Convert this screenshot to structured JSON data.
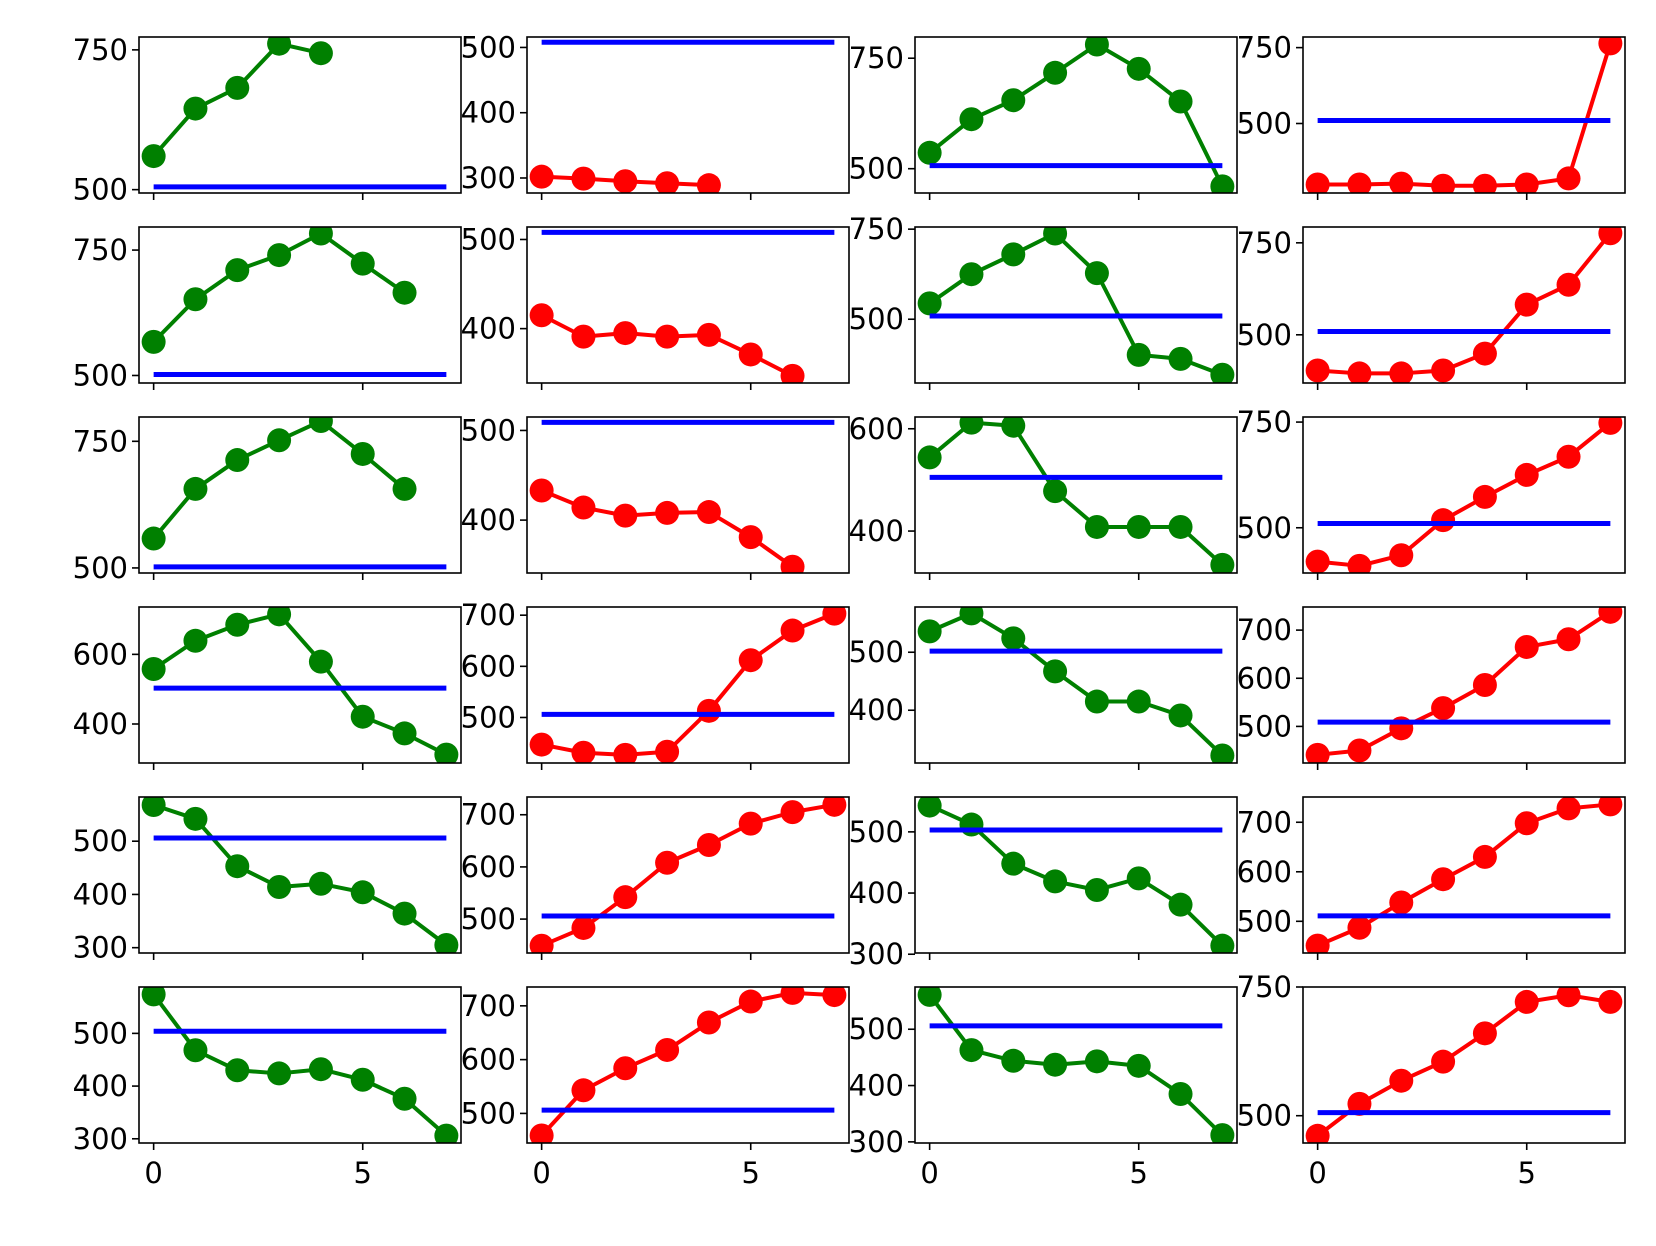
{
  "chart_data": [
    {
      "type": "line",
      "xlim": [
        -0.35,
        7.35
      ],
      "xticks": [
        0,
        5
      ],
      "ylim": [
        494,
        773
      ],
      "yticks": [
        500,
        750
      ],
      "series": [
        {
          "color": "#008000",
          "marker": "o",
          "x": [
            0,
            1,
            2,
            3,
            4
          ],
          "values": [
            560,
            645,
            682,
            761,
            744
          ]
        },
        {
          "color": "#0000ff",
          "x": [
            0,
            7
          ],
          "values": [
            505,
            505
          ]
        }
      ]
    },
    {
      "type": "line",
      "xlim": [
        -0.35,
        7.35
      ],
      "xticks": [
        0,
        5
      ],
      "ylim": [
        277,
        516
      ],
      "yticks": [
        300,
        400,
        500
      ],
      "series": [
        {
          "color": "#ff0000",
          "marker": "o",
          "x": [
            0,
            1,
            2,
            3,
            4
          ],
          "values": [
            302,
            299,
            295,
            292,
            289
          ]
        },
        {
          "color": "#0000ff",
          "x": [
            0,
            7
          ],
          "values": [
            508,
            508
          ]
        }
      ]
    },
    {
      "type": "line",
      "xlim": [
        -0.35,
        7.35
      ],
      "xticks": [
        0,
        5
      ],
      "ylim": [
        445,
        798
      ],
      "yticks": [
        500,
        750
      ],
      "series": [
        {
          "color": "#008000",
          "marker": "o",
          "x": [
            0,
            1,
            2,
            3,
            4,
            5,
            6,
            7
          ],
          "values": [
            536,
            612,
            655,
            717,
            781,
            726,
            652,
            460
          ]
        },
        {
          "color": "#0000ff",
          "x": [
            0,
            7
          ],
          "values": [
            507,
            507
          ]
        }
      ]
    },
    {
      "type": "line",
      "xlim": [
        -0.35,
        7.35
      ],
      "xticks": [
        0,
        5
      ],
      "ylim": [
        271,
        785
      ],
      "yticks": [
        500,
        750
      ],
      "series": [
        {
          "color": "#ff0000",
          "marker": "o",
          "x": [
            0,
            1,
            2,
            3,
            4,
            5,
            6,
            7
          ],
          "values": [
            299,
            299,
            302,
            295,
            295,
            299,
            319,
            764
          ]
        },
        {
          "color": "#0000ff",
          "x": [
            0,
            7
          ],
          "values": [
            510,
            510
          ]
        }
      ]
    },
    {
      "type": "line",
      "xlim": [
        -0.35,
        7.35
      ],
      "xticks": [
        0,
        5
      ],
      "ylim": [
        485,
        796
      ],
      "yticks": [
        500,
        750
      ],
      "series": [
        {
          "color": "#008000",
          "marker": "o",
          "x": [
            0,
            1,
            2,
            3,
            4,
            5,
            6
          ],
          "values": [
            567,
            652,
            710,
            740,
            783,
            723,
            665
          ]
        },
        {
          "color": "#0000ff",
          "x": [
            0,
            7
          ],
          "values": [
            502,
            502
          ]
        }
      ]
    },
    {
      "type": "line",
      "xlim": [
        -0.35,
        7.35
      ],
      "xticks": [
        0,
        5
      ],
      "ylim": [
        339,
        514
      ],
      "yticks": [
        400,
        500
      ],
      "series": [
        {
          "color": "#ff0000",
          "marker": "o",
          "x": [
            0,
            1,
            2,
            3,
            4,
            5,
            6
          ],
          "values": [
            415,
            391,
            395,
            391,
            393,
            371,
            347
          ]
        },
        {
          "color": "#0000ff",
          "x": [
            0,
            7
          ],
          "values": [
            508,
            508
          ]
        }
      ]
    },
    {
      "type": "line",
      "xlim": [
        -0.35,
        7.35
      ],
      "xticks": [
        0,
        5
      ],
      "ylim": [
        323,
        756
      ],
      "yticks": [
        500,
        750
      ],
      "series": [
        {
          "color": "#008000",
          "marker": "o",
          "x": [
            0,
            1,
            2,
            3,
            4,
            5,
            6,
            7
          ],
          "values": [
            544,
            625,
            680,
            738,
            628,
            401,
            390,
            346
          ]
        },
        {
          "color": "#0000ff",
          "x": [
            0,
            7
          ],
          "values": [
            509,
            509
          ]
        }
      ]
    },
    {
      "type": "line",
      "xlim": [
        -0.35,
        7.35
      ],
      "xticks": [
        0,
        5
      ],
      "ylim": [
        369,
        793
      ],
      "yticks": [
        500,
        750
      ],
      "series": [
        {
          "color": "#ff0000",
          "marker": "o",
          "x": [
            0,
            1,
            2,
            3,
            4,
            5,
            6,
            7
          ],
          "values": [
            403,
            395,
            395,
            403,
            449,
            582,
            636,
            776
          ]
        },
        {
          "color": "#0000ff",
          "x": [
            0,
            7
          ],
          "values": [
            509,
            509
          ]
        }
      ]
    },
    {
      "type": "line",
      "xlim": [
        -0.35,
        7.35
      ],
      "xticks": [
        0,
        5
      ],
      "ylim": [
        490,
        798
      ],
      "yticks": [
        500,
        750
      ],
      "series": [
        {
          "color": "#008000",
          "marker": "o",
          "x": [
            0,
            1,
            2,
            3,
            4,
            5,
            6
          ],
          "values": [
            558,
            656,
            713,
            752,
            790,
            725,
            656
          ]
        },
        {
          "color": "#0000ff",
          "x": [
            0,
            7
          ],
          "values": [
            502,
            502
          ]
        }
      ]
    },
    {
      "type": "line",
      "xlim": [
        -0.35,
        7.35
      ],
      "xticks": [
        0,
        5
      ],
      "ylim": [
        341,
        515
      ],
      "yticks": [
        400,
        500
      ],
      "series": [
        {
          "color": "#ff0000",
          "marker": "o",
          "x": [
            0,
            1,
            2,
            3,
            4,
            5,
            6
          ],
          "values": [
            433,
            414,
            405,
            408,
            409,
            381,
            348
          ]
        },
        {
          "color": "#0000ff",
          "x": [
            0,
            7
          ],
          "values": [
            509,
            509
          ]
        }
      ]
    },
    {
      "type": "line",
      "xlim": [
        -0.35,
        7.35
      ],
      "xticks": [
        0,
        5
      ],
      "ylim": [
        318,
        623
      ],
      "yticks": [
        400,
        600
      ],
      "series": [
        {
          "color": "#008000",
          "marker": "o",
          "x": [
            0,
            1,
            2,
            3,
            4,
            5,
            6,
            7
          ],
          "values": [
            544,
            612,
            606,
            478,
            408,
            408,
            408,
            334
          ]
        },
        {
          "color": "#0000ff",
          "x": [
            0,
            7
          ],
          "values": [
            505,
            505
          ]
        }
      ]
    },
    {
      "type": "line",
      "xlim": [
        -0.35,
        7.35
      ],
      "xticks": [
        0,
        5
      ],
      "ylim": [
        393,
        762
      ],
      "yticks": [
        500,
        750
      ],
      "series": [
        {
          "color": "#ff0000",
          "marker": "o",
          "x": [
            0,
            1,
            2,
            3,
            4,
            5,
            6,
            7
          ],
          "values": [
            420,
            410,
            435,
            518,
            573,
            625,
            668,
            748
          ]
        },
        {
          "color": "#0000ff",
          "x": [
            0,
            7
          ],
          "values": [
            510,
            510
          ]
        }
      ]
    },
    {
      "type": "line",
      "xlim": [
        -0.35,
        7.35
      ],
      "xticks": [
        0,
        5
      ],
      "ylim": [
        288,
        736
      ],
      "yticks": [
        400,
        600
      ],
      "series": [
        {
          "color": "#008000",
          "marker": "o",
          "x": [
            0,
            1,
            2,
            3,
            4,
            5,
            6,
            7
          ],
          "values": [
            558,
            639,
            685,
            715,
            579,
            421,
            373,
            312
          ]
        },
        {
          "color": "#0000ff",
          "x": [
            0,
            7
          ],
          "values": [
            503,
            503
          ]
        }
      ]
    },
    {
      "type": "line",
      "xlim": [
        -0.35,
        7.35
      ],
      "xticks": [
        0,
        5
      ],
      "ylim": [
        411,
        716
      ],
      "yticks": [
        500,
        600,
        700
      ],
      "series": [
        {
          "color": "#ff0000",
          "marker": "o",
          "x": [
            0,
            1,
            2,
            3,
            4,
            5,
            6,
            7
          ],
          "values": [
            447,
            431,
            427,
            433,
            513,
            612,
            670,
            703
          ]
        },
        {
          "color": "#0000ff",
          "x": [
            0,
            7
          ],
          "values": [
            506,
            506
          ]
        }
      ]
    },
    {
      "type": "line",
      "xlim": [
        -0.35,
        7.35
      ],
      "xticks": [
        0,
        5
      ],
      "ylim": [
        309,
        578
      ],
      "yticks": [
        400,
        500
      ],
      "series": [
        {
          "color": "#008000",
          "marker": "o",
          "x": [
            0,
            1,
            2,
            3,
            4,
            5,
            6,
            7
          ],
          "values": [
            536,
            567,
            524,
            467,
            415,
            415,
            391,
            322
          ]
        },
        {
          "color": "#0000ff",
          "x": [
            0,
            7
          ],
          "values": [
            502,
            502
          ]
        }
      ]
    },
    {
      "type": "line",
      "xlim": [
        -0.35,
        7.35
      ],
      "xticks": [
        0,
        5
      ],
      "ylim": [
        424,
        748
      ],
      "yticks": [
        500,
        600,
        700
      ],
      "series": [
        {
          "color": "#ff0000",
          "marker": "o",
          "x": [
            0,
            1,
            2,
            3,
            4,
            5,
            6,
            7
          ],
          "values": [
            441,
            450,
            496,
            538,
            586,
            665,
            681,
            738
          ]
        },
        {
          "color": "#0000ff",
          "x": [
            0,
            7
          ],
          "values": [
            509,
            509
          ]
        }
      ]
    },
    {
      "type": "line",
      "xlim": [
        -0.35,
        7.35
      ],
      "xticks": [
        0,
        5
      ],
      "ylim": [
        290,
        583
      ],
      "yticks": [
        300,
        400,
        500
      ],
      "series": [
        {
          "color": "#008000",
          "marker": "o",
          "x": [
            0,
            1,
            2,
            3,
            4,
            5,
            6,
            7
          ],
          "values": [
            568,
            542,
            453,
            414,
            420,
            404,
            364,
            305
          ]
        },
        {
          "color": "#0000ff",
          "x": [
            0,
            7
          ],
          "values": [
            506,
            506
          ]
        }
      ]
    },
    {
      "type": "line",
      "xlim": [
        -0.35,
        7.35
      ],
      "xticks": [
        0,
        5
      ],
      "ylim": [
        435,
        734
      ],
      "yticks": [
        500,
        600,
        700
      ],
      "series": [
        {
          "color": "#ff0000",
          "marker": "o",
          "x": [
            0,
            1,
            2,
            3,
            4,
            5,
            6,
            7
          ],
          "values": [
            449,
            483,
            542,
            608,
            642,
            683,
            705,
            719
          ]
        },
        {
          "color": "#0000ff",
          "x": [
            0,
            7
          ],
          "values": [
            506,
            506
          ]
        }
      ]
    },
    {
      "type": "line",
      "xlim": [
        -0.35,
        7.35
      ],
      "xticks": [
        0,
        5
      ],
      "ylim": [
        302,
        557
      ],
      "yticks": [
        300,
        400,
        500
      ],
      "series": [
        {
          "color": "#008000",
          "marker": "o",
          "x": [
            0,
            1,
            2,
            3,
            4,
            5,
            6,
            7
          ],
          "values": [
            543,
            512,
            448,
            419,
            405,
            424,
            381,
            314
          ]
        },
        {
          "color": "#0000ff",
          "x": [
            0,
            7
          ],
          "values": [
            503,
            503
          ]
        }
      ]
    },
    {
      "type": "line",
      "xlim": [
        -0.35,
        7.35
      ],
      "xticks": [
        0,
        5
      ],
      "ylim": [
        436,
        751
      ],
      "yticks": [
        500,
        600,
        700
      ],
      "series": [
        {
          "color": "#ff0000",
          "marker": "o",
          "x": [
            0,
            1,
            2,
            3,
            4,
            5,
            6,
            7
          ],
          "values": [
            451,
            487,
            538,
            585,
            630,
            698,
            728,
            736
          ]
        },
        {
          "color": "#0000ff",
          "x": [
            0,
            7
          ],
          "values": [
            511,
            511
          ]
        }
      ]
    },
    {
      "type": "line",
      "xlim": [
        -0.35,
        7.35
      ],
      "xticks": [
        0,
        5
      ],
      "ylim": [
        292,
        588
      ],
      "yticks": [
        300,
        400,
        500
      ],
      "series": [
        {
          "color": "#008000",
          "marker": "o",
          "x": [
            0,
            1,
            2,
            3,
            4,
            5,
            6,
            7
          ],
          "values": [
            574,
            468,
            430,
            424,
            432,
            412,
            376,
            306
          ]
        },
        {
          "color": "#0000ff",
          "x": [
            0,
            7
          ],
          "values": [
            504,
            504
          ]
        }
      ]
    },
    {
      "type": "line",
      "xlim": [
        -0.35,
        7.35
      ],
      "xticks": [
        0,
        5
      ],
      "ylim": [
        445,
        735
      ],
      "yticks": [
        500,
        600,
        700
      ],
      "series": [
        {
          "color": "#ff0000",
          "marker": "o",
          "x": [
            0,
            1,
            2,
            3,
            4,
            5,
            6,
            7
          ],
          "values": [
            459,
            543,
            584,
            618,
            669,
            708,
            724,
            720
          ]
        },
        {
          "color": "#0000ff",
          "x": [
            0,
            7
          ],
          "values": [
            506,
            506
          ]
        }
      ]
    },
    {
      "type": "line",
      "xlim": [
        -0.35,
        7.35
      ],
      "xticks": [
        0,
        5
      ],
      "ylim": [
        298,
        575
      ],
      "yticks": [
        300,
        400,
        500
      ],
      "series": [
        {
          "color": "#008000",
          "marker": "o",
          "x": [
            0,
            1,
            2,
            3,
            4,
            5,
            6,
            7
          ],
          "values": [
            561,
            463,
            444,
            437,
            443,
            435,
            385,
            312
          ]
        },
        {
          "color": "#0000ff",
          "x": [
            0,
            7
          ],
          "values": [
            506,
            506
          ]
        }
      ]
    },
    {
      "type": "line",
      "xlim": [
        -0.35,
        7.35
      ],
      "xticks": [
        0,
        5
      ],
      "ylim": [
        447,
        750
      ],
      "yticks": [
        500,
        750
      ],
      "series": [
        {
          "color": "#ff0000",
          "marker": "o",
          "x": [
            0,
            1,
            2,
            3,
            4,
            5,
            6,
            7
          ],
          "values": [
            461,
            523,
            568,
            605,
            660,
            721,
            734,
            721
          ]
        },
        {
          "color": "#0000ff",
          "x": [
            0,
            7
          ],
          "values": [
            506,
            506
          ]
        }
      ]
    }
  ]
}
